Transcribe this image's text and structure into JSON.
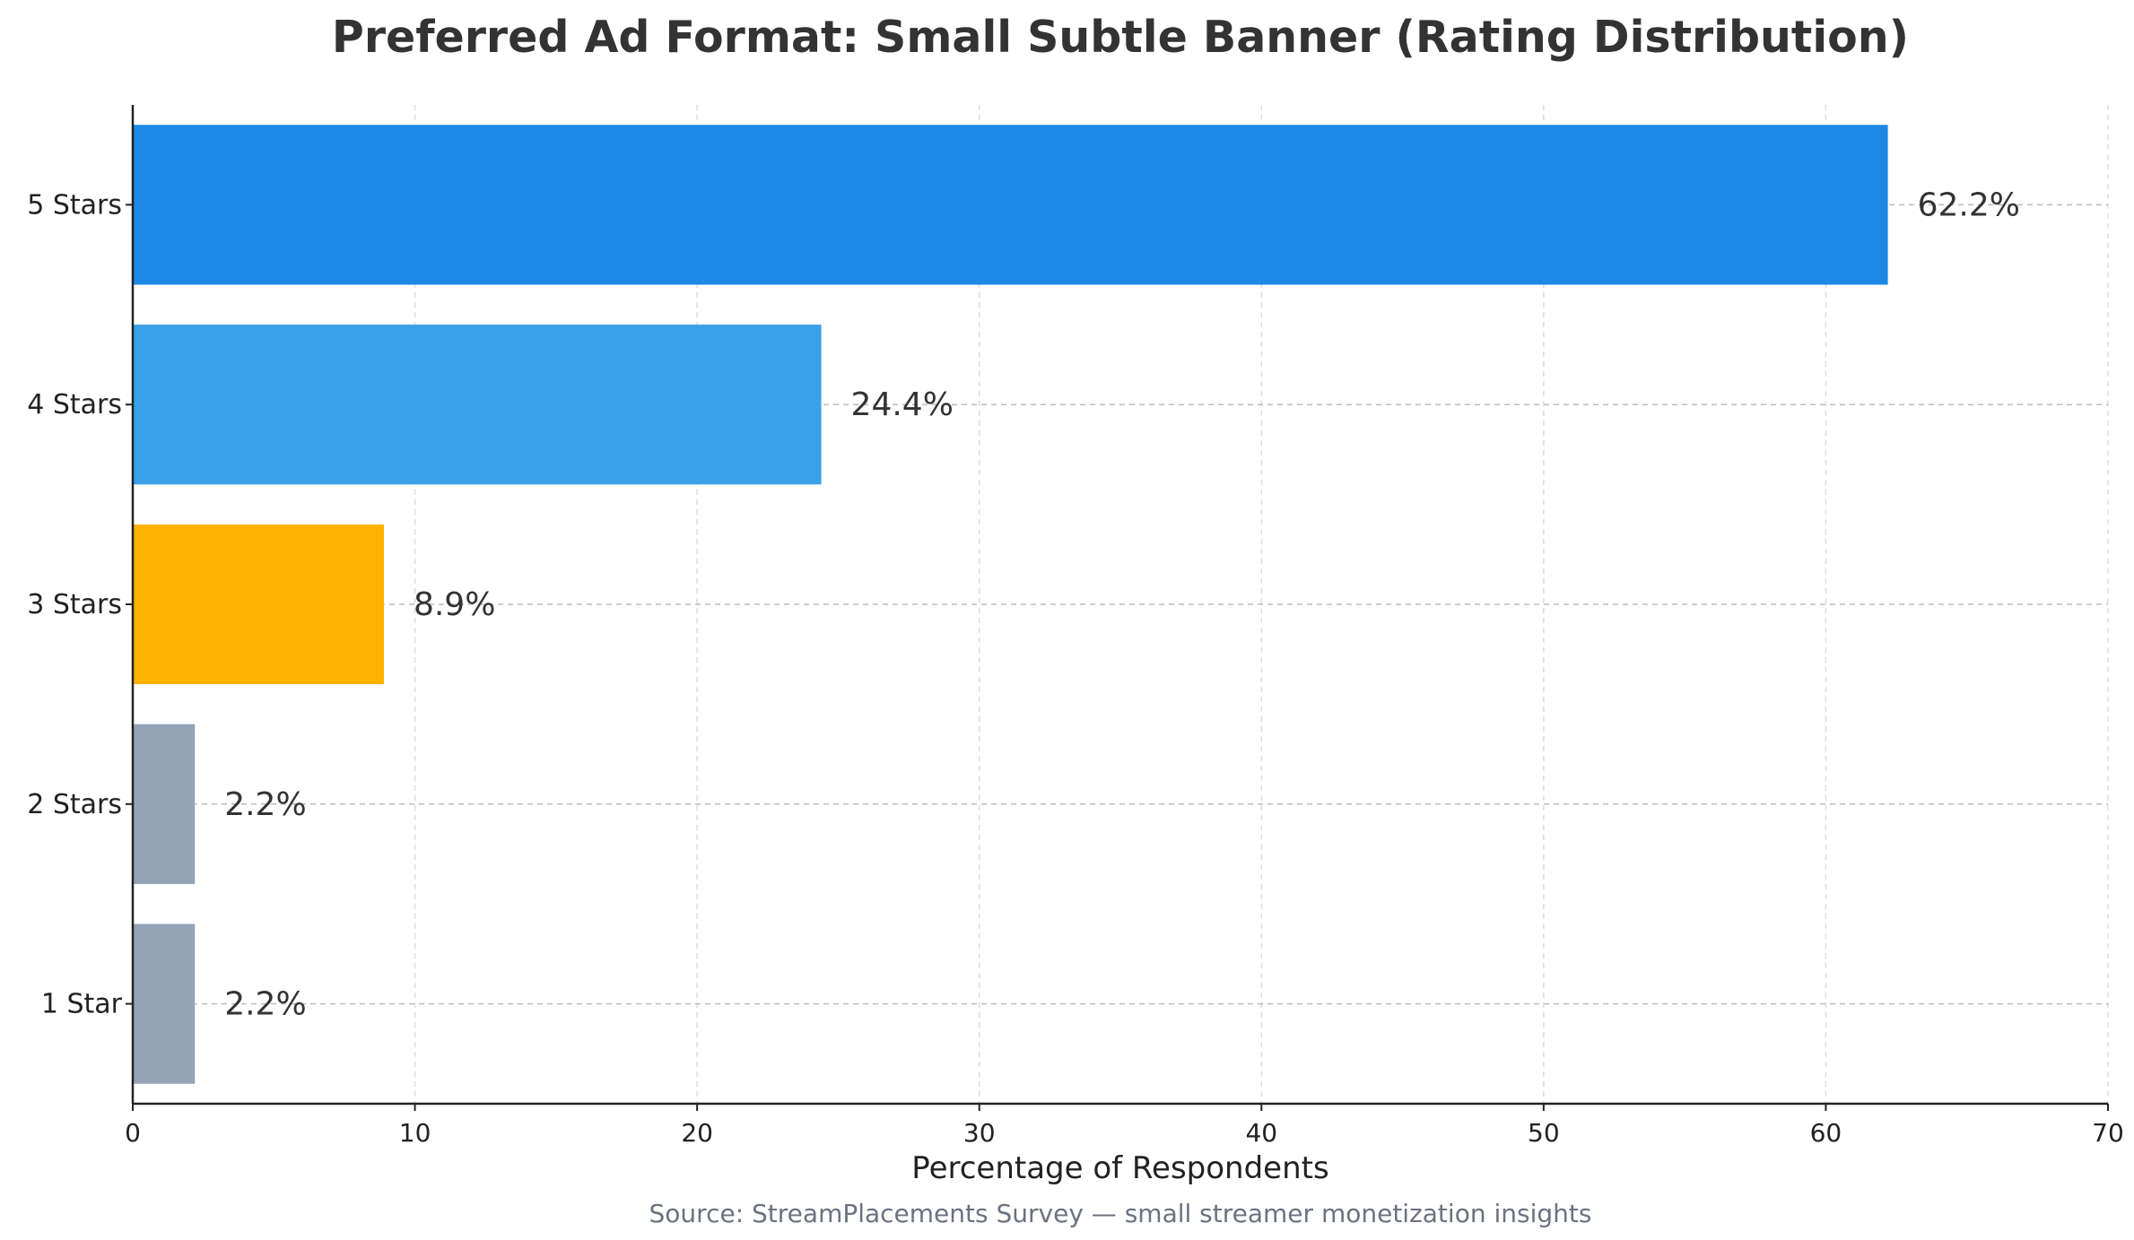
{
  "chart_data": {
    "type": "bar",
    "orientation": "horizontal",
    "title": "Preferred Ad Format: Small Subtle Banner (Rating Distribution)",
    "xlabel": "Percentage of Respondents",
    "ylabel": "",
    "caption": "Source: StreamPlacements Survey — small streamer monetization insights",
    "categories": [
      "5 Stars",
      "4 Stars",
      "3 Stars",
      "2 Stars",
      "1 Star"
    ],
    "values": [
      62.2,
      24.4,
      8.9,
      2.2,
      2.2
    ],
    "data_labels": [
      "62.2%",
      "24.4%",
      "8.9%",
      "2.2%",
      "2.2%"
    ],
    "colors": [
      "#1E88E5",
      "#39A0E9",
      "#FFB300",
      "#94A3B8",
      "#94A3B8"
    ],
    "xlim": [
      0,
      70
    ],
    "xticks": [
      0,
      10,
      20,
      30,
      40,
      50,
      60,
      70
    ],
    "grid": true
  }
}
